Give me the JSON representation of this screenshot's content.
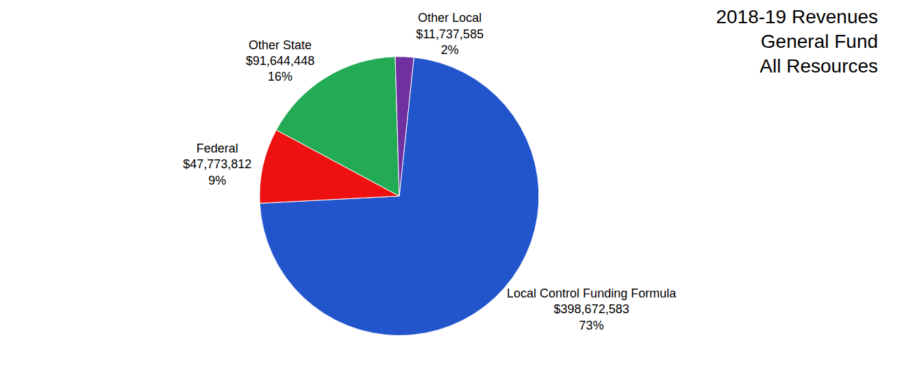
{
  "chart_data": {
    "type": "pie",
    "title": [
      "2018-19 Revenues",
      "General Fund",
      "All Resources"
    ],
    "categories": [
      "Local Control Funding Formula",
      "Federal",
      "Other State",
      "Other Local"
    ],
    "values": [
      398672583,
      47773812,
      91644448,
      11737585
    ],
    "value_labels": [
      "$398,672,583",
      "$47,773,812",
      "$91,644,448",
      "$11,737,585"
    ],
    "percentages": [
      {
        "value": 73,
        "label": "73%"
      },
      {
        "value": 9,
        "label": "9%"
      },
      {
        "value": 16,
        "label": "16%"
      },
      {
        "value": 2,
        "label": "2%"
      }
    ],
    "colors": [
      "#2255cc",
      "#ee1111",
      "#22aa55",
      "#7030a0"
    ],
    "data_labels": true
  }
}
